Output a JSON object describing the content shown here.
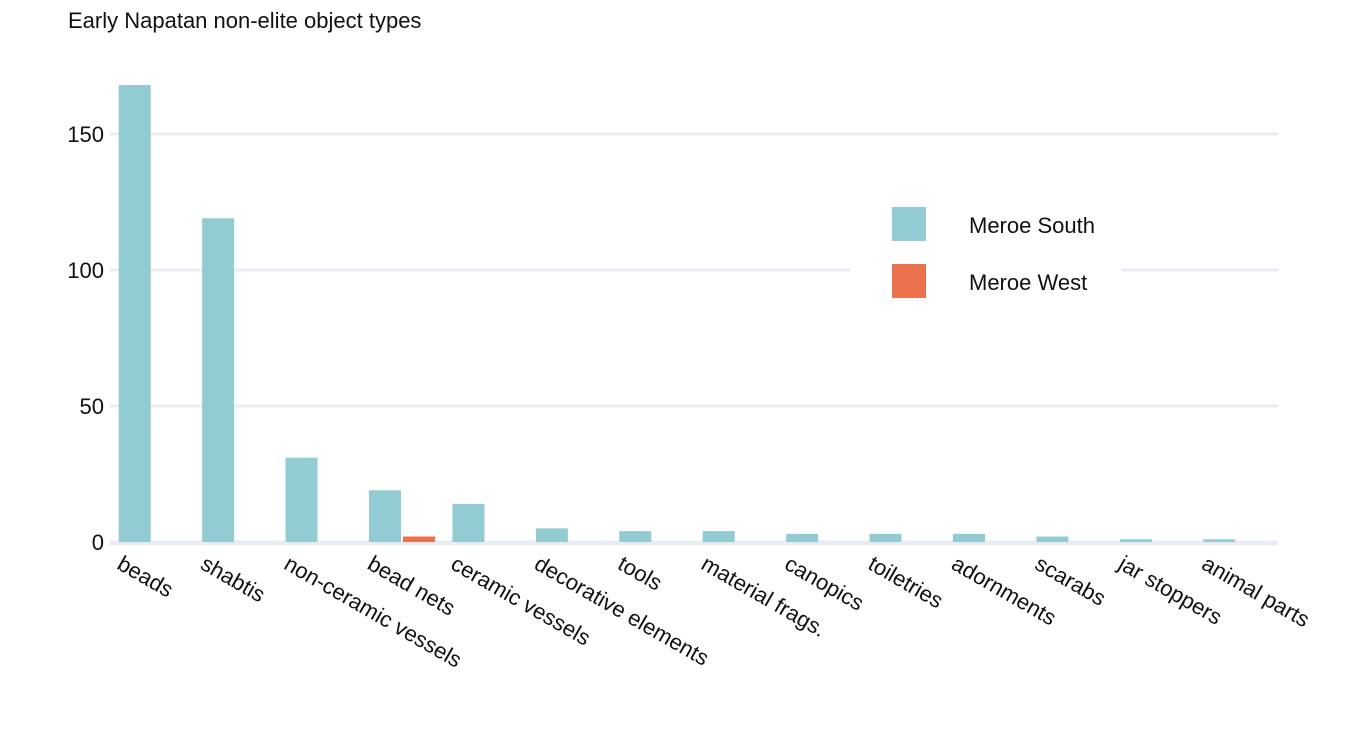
{
  "chart_data": {
    "type": "bar",
    "title": "Early Napatan non-elite object types",
    "xlabel": "",
    "ylabel": "",
    "ylim": [
      0,
      168
    ],
    "yticks": [
      0,
      50,
      100,
      150
    ],
    "grid": true,
    "legend_position": "top-right",
    "categories": [
      "beads",
      "shabtis",
      "non-ceramic vessels",
      "bead nets",
      "ceramic vessels",
      "decorative elements",
      "tools",
      "material frags.",
      "canopics",
      "toiletries",
      "adornments",
      "scarabs",
      "jar stoppers",
      "animal parts"
    ],
    "series": [
      {
        "name": "Meroe South",
        "color": "#92cbd1",
        "values": [
          168,
          119,
          31,
          19,
          14,
          5,
          4,
          4,
          3,
          3,
          3,
          2,
          1,
          1
        ]
      },
      {
        "name": "Meroe West",
        "color": "#ec724e",
        "values": [
          0,
          0,
          0,
          2,
          0,
          0,
          0,
          0,
          0,
          0,
          0,
          0,
          0,
          0
        ]
      }
    ]
  }
}
